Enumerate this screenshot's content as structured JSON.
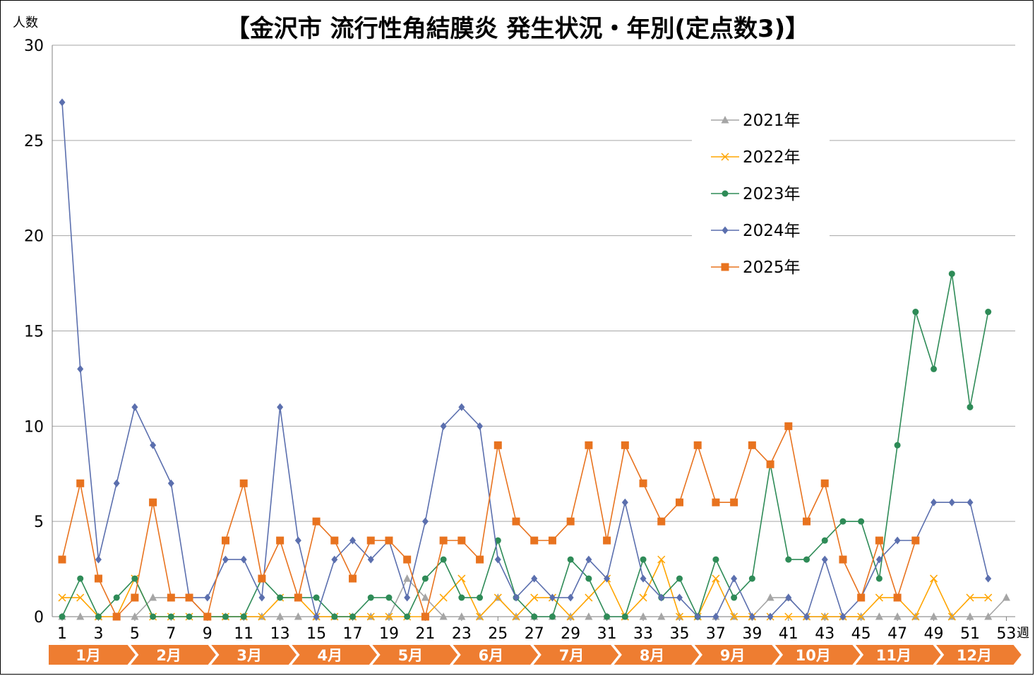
{
  "chart_data": {
    "type": "line",
    "title": "【金沢市 流行性角結膜炎 発生状況・年別(定点数3)】",
    "ylabel": "人数",
    "xlabel": "週",
    "ylim": [
      0,
      30
    ],
    "yticks": [
      "0",
      "5",
      "10",
      "15",
      "20",
      "25",
      "30"
    ],
    "xlim": [
      1,
      53
    ],
    "xticks": [
      "1",
      "3",
      "5",
      "7",
      "9",
      "11",
      "13",
      "15",
      "17",
      "19",
      "21",
      "23",
      "25",
      "27",
      "29",
      "31",
      "33",
      "35",
      "37",
      "39",
      "41",
      "43",
      "45",
      "47",
      "49",
      "51",
      "53"
    ],
    "grid": true,
    "legend_position": "top-right",
    "months": [
      "1月",
      "2月",
      "3月",
      "4月",
      "5月",
      "6月",
      "7月",
      "8月",
      "9月",
      "10月",
      "11月",
      "12月"
    ],
    "series": [
      {
        "name": "2021年",
        "color": "#a5a5a5",
        "marker": "triangle",
        "values": [
          0,
          0,
          0,
          0,
          0,
          1,
          1,
          1,
          0,
          0,
          0,
          0,
          0,
          0,
          0,
          0,
          0,
          0,
          0,
          2,
          1,
          0,
          0,
          0,
          1,
          0,
          0,
          0,
          0,
          0,
          0,
          0,
          0,
          0,
          0,
          0,
          0,
          0,
          0,
          1,
          1,
          0,
          0,
          0,
          0,
          0,
          0,
          0,
          0,
          0,
          0,
          0,
          1
        ]
      },
      {
        "name": "2022年",
        "color": "#ffa500",
        "marker": "x",
        "values": [
          1,
          1,
          0,
          0,
          2,
          0,
          0,
          0,
          0,
          0,
          0,
          0,
          1,
          1,
          0,
          0,
          0,
          0,
          0,
          0,
          0,
          1,
          2,
          0,
          1,
          0,
          1,
          1,
          0,
          1,
          2,
          0,
          1,
          3,
          0,
          0,
          2,
          0,
          0,
          0,
          0,
          0,
          0,
          0,
          0,
          1,
          1,
          0,
          2,
          0,
          1,
          1
        ]
      },
      {
        "name": "2023年",
        "color": "#2e8b57",
        "marker": "circle",
        "values": [
          0,
          2,
          0,
          1,
          2,
          0,
          0,
          0,
          0,
          0,
          0,
          2,
          1,
          1,
          1,
          0,
          0,
          1,
          1,
          0,
          2,
          3,
          1,
          1,
          4,
          1,
          0,
          0,
          3,
          2,
          0,
          0,
          3,
          1,
          2,
          0,
          3,
          1,
          2,
          8,
          3,
          3,
          4,
          5,
          5,
          2,
          9,
          16,
          13,
          18,
          11,
          16
        ]
      },
      {
        "name": "2024年",
        "color": "#5b6fae",
        "marker": "diamond",
        "values": [
          27,
          13,
          3,
          7,
          11,
          9,
          7,
          1,
          1,
          3,
          3,
          1,
          11,
          4,
          0,
          3,
          4,
          3,
          4,
          1,
          5,
          10,
          11,
          10,
          3,
          1,
          2,
          1,
          1,
          3,
          2,
          6,
          2,
          1,
          1,
          0,
          0,
          2,
          0,
          0,
          1,
          0,
          3,
          0,
          1,
          3,
          4,
          4,
          6,
          6,
          6,
          2
        ]
      },
      {
        "name": "2025年",
        "color": "#e8731f",
        "marker": "square",
        "values": [
          3,
          7,
          2,
          0,
          1,
          6,
          1,
          1,
          0,
          4,
          7,
          2,
          4,
          1,
          5,
          4,
          2,
          4,
          4,
          3,
          0,
          4,
          4,
          3,
          9,
          5,
          4,
          4,
          5,
          9,
          4,
          9,
          7,
          5,
          6,
          9,
          6,
          6,
          9,
          8,
          10,
          5,
          7,
          3,
          1,
          4,
          1,
          4
        ]
      }
    ]
  }
}
